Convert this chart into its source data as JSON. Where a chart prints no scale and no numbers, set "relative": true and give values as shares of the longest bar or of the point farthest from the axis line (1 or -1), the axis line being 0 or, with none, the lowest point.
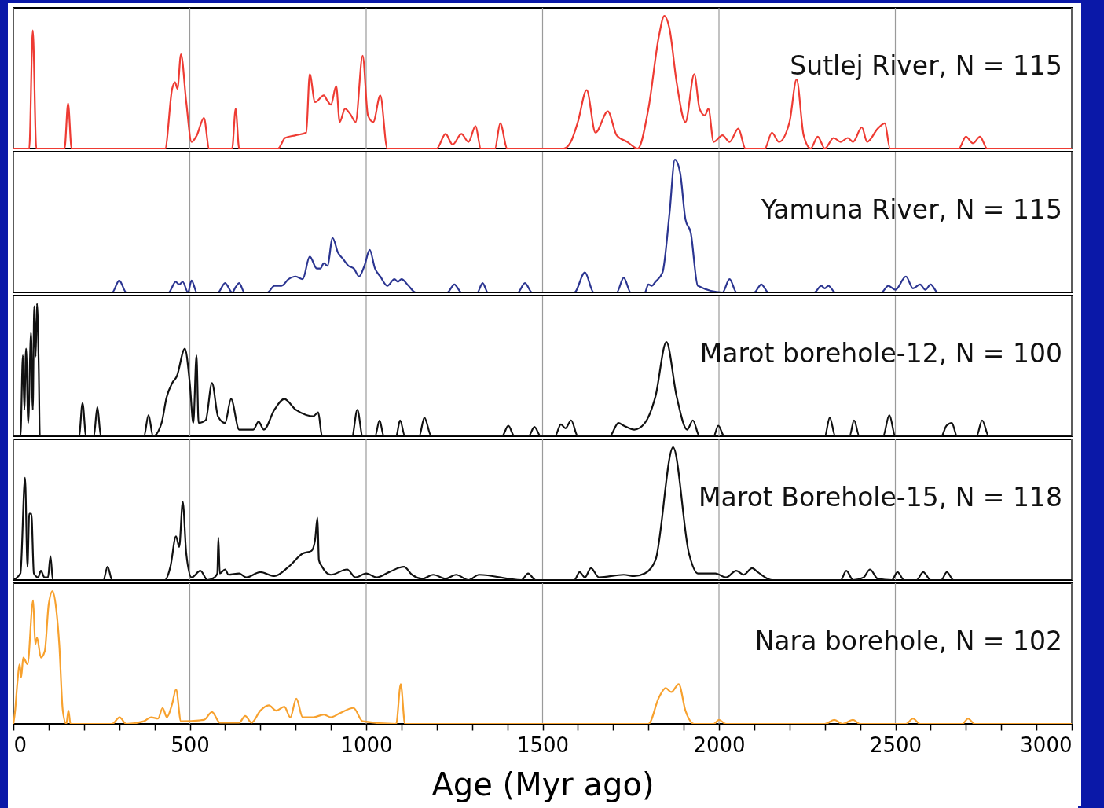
{
  "chart_data": [
    {
      "type": "line",
      "relative": true,
      "xlim": [
        0,
        3000
      ],
      "xticks": [
        0,
        500,
        1000,
        1500,
        2000,
        2500,
        3000
      ],
      "tick_labels": false,
      "grid": "x",
      "x": [
        0,
        45,
        55,
        65,
        145,
        155,
        165,
        430,
        450,
        458,
        465,
        475,
        490,
        505,
        520,
        540,
        555,
        620,
        630,
        640,
        750,
        770,
        800,
        830,
        840,
        855,
        880,
        890,
        900,
        915,
        925,
        940,
        955,
        970,
        990,
        1005,
        1020,
        1040,
        1060,
        1200,
        1225,
        1245,
        1270,
        1290,
        1310,
        1325,
        1365,
        1380,
        1400,
        1560,
        1580,
        1600,
        1625,
        1650,
        1685,
        1710,
        1740,
        1770,
        1800,
        1830,
        1845,
        1860,
        1880,
        1905,
        1930,
        1945,
        1960,
        1970,
        1985,
        2010,
        2030,
        2055,
        2075,
        2130,
        2150,
        2170,
        2200,
        2220,
        2240,
        2260,
        2280,
        2300,
        2325,
        2345,
        2365,
        2380,
        2405,
        2420,
        2450,
        2470,
        2485,
        2680,
        2700,
        2720,
        2740,
        2760,
        3000
      ],
      "series": [
        {
          "name": "Sutlej River, N = 115",
          "color": "#ee3b33",
          "values": [
            0,
            0,
            0.89,
            0,
            0,
            0.34,
            0,
            0,
            0.45,
            0.5,
            0.45,
            0.71,
            0.35,
            0.05,
            0.1,
            0.23,
            0,
            0,
            0.3,
            0,
            0,
            0.08,
            0.1,
            0.12,
            0.56,
            0.35,
            0.4,
            0.36,
            0.33,
            0.47,
            0.2,
            0.3,
            0.26,
            0.2,
            0.7,
            0.25,
            0.2,
            0.4,
            0,
            0,
            0.11,
            0.03,
            0.11,
            0.05,
            0.17,
            0,
            0,
            0.19,
            0,
            0,
            0.05,
            0.2,
            0.44,
            0.12,
            0.28,
            0.1,
            0.05,
            0,
            0.3,
            0.85,
            1,
            0.9,
            0.5,
            0.2,
            0.56,
            0.3,
            0.25,
            0.3,
            0.05,
            0.1,
            0.05,
            0.15,
            0,
            0,
            0.12,
            0.05,
            0.2,
            0.52,
            0.1,
            0,
            0.09,
            0,
            0.08,
            0.05,
            0.08,
            0.05,
            0.16,
            0.05,
            0.15,
            0.19,
            0,
            0,
            0.09,
            0.04,
            0.09,
            0,
            0
          ]
        }
      ]
    },
    {
      "type": "line",
      "relative": true,
      "xlim": [
        0,
        3000
      ],
      "xticks": [
        0,
        500,
        1000,
        1500,
        2000,
        2500,
        3000
      ],
      "tick_labels": false,
      "grid": "x",
      "x": [
        0,
        280,
        300,
        320,
        440,
        460,
        470,
        480,
        495,
        505,
        520,
        535,
        580,
        600,
        620,
        630,
        640,
        655,
        720,
        740,
        760,
        780,
        800,
        820,
        840,
        860,
        870,
        880,
        890,
        905,
        920,
        935,
        950,
        965,
        980,
        995,
        1010,
        1025,
        1040,
        1060,
        1080,
        1090,
        1100,
        1120,
        1140,
        1230,
        1250,
        1270,
        1315,
        1330,
        1345,
        1430,
        1450,
        1470,
        1590,
        1620,
        1645,
        1710,
        1730,
        1750,
        1790,
        1800,
        1810,
        1820,
        1840,
        1860,
        1875,
        1890,
        1905,
        1920,
        1940,
        2010,
        2030,
        2050,
        2100,
        2120,
        2140,
        2270,
        2290,
        2300,
        2310,
        2330,
        2460,
        2480,
        2500,
        2530,
        2550,
        2570,
        2585,
        2600,
        2620,
        3000
      ],
      "series": [
        {
          "name": "Yamuna River, N = 115",
          "color": "#2b3591",
          "values": [
            0,
            0,
            0.09,
            0,
            0,
            0.08,
            0.06,
            0.08,
            0,
            0.09,
            0,
            0,
            0,
            0.07,
            0,
            0.04,
            0.07,
            0,
            0,
            0.05,
            0.05,
            0.1,
            0.12,
            0.1,
            0.27,
            0.18,
            0.18,
            0.22,
            0.2,
            0.41,
            0.3,
            0.25,
            0.2,
            0.18,
            0.12,
            0.2,
            0.32,
            0.18,
            0.12,
            0.05,
            0.1,
            0.08,
            0.1,
            0.05,
            0,
            0,
            0.06,
            0,
            0,
            0.07,
            0,
            0,
            0.07,
            0,
            0,
            0.15,
            0,
            0,
            0.11,
            0,
            0,
            0.06,
            0.05,
            0.08,
            0.15,
            0.6,
            1,
            0.9,
            0.55,
            0.45,
            0.05,
            0,
            0.1,
            0,
            0,
            0.06,
            0,
            0,
            0.05,
            0.03,
            0.05,
            0,
            0,
            0.05,
            0.02,
            0.12,
            0.03,
            0.06,
            0.02,
            0.06,
            0,
            0
          ]
        }
      ]
    },
    {
      "type": "line",
      "relative": true,
      "xlim": [
        0,
        3000
      ],
      "xticks": [
        0,
        500,
        1000,
        1500,
        2000,
        2500,
        3000
      ],
      "tick_labels": false,
      "grid": "x",
      "x": [
        0,
        20,
        27,
        31,
        36,
        42,
        50,
        55,
        59,
        63,
        67,
        72,
        75,
        134,
        186,
        196,
        206,
        228,
        238,
        248,
        370,
        383,
        396,
        420,
        434,
        450,
        463,
        486,
        500,
        510,
        519,
        525,
        545,
        563,
        580,
        600,
        617,
        640,
        680,
        695,
        710,
        740,
        768,
        800,
        830,
        850,
        864,
        875,
        960,
        975,
        990,
        1025,
        1038,
        1050,
        1085,
        1096,
        1110,
        1150,
        1165,
        1185,
        1385,
        1403,
        1420,
        1460,
        1477,
        1495,
        1535,
        1552,
        1565,
        1581,
        1600,
        1690,
        1715,
        1730,
        1760,
        1790,
        1820,
        1851,
        1880,
        1910,
        1926,
        1945,
        1985,
        1998,
        2015,
        2300,
        2314,
        2330,
        2370,
        2383,
        2398,
        2465,
        2483,
        2500,
        2630,
        2645,
        2660,
        2675,
        2730,
        2746,
        2765,
        3000
      ],
      "series": [
        {
          "name": "Marot borehole-12, N = 100",
          "color": "#111111",
          "values": [
            0,
            0,
            0.61,
            0.2,
            0.66,
            0.1,
            0.78,
            0.2,
            0.98,
            0.6,
            1,
            0.5,
            0,
            0,
            0,
            0.25,
            0,
            0,
            0.22,
            0,
            0,
            0.16,
            0,
            0.1,
            0.29,
            0.4,
            0.45,
            0.66,
            0.4,
            0.1,
            0.61,
            0.1,
            0.12,
            0.4,
            0.15,
            0.1,
            0.28,
            0.05,
            0.05,
            0.11,
            0.05,
            0.2,
            0.28,
            0.2,
            0.16,
            0.15,
            0.18,
            0,
            0,
            0.2,
            0,
            0,
            0.12,
            0,
            0,
            0.12,
            0,
            0,
            0.14,
            0,
            0,
            0.08,
            0,
            0,
            0.07,
            0,
            0,
            0.09,
            0.06,
            0.12,
            0,
            0,
            0.1,
            0.08,
            0.05,
            0.1,
            0.3,
            0.71,
            0.3,
            0.05,
            0.12,
            0,
            0,
            0.08,
            0,
            0,
            0.14,
            0,
            0,
            0.12,
            0,
            0,
            0.16,
            0,
            0,
            0.08,
            0.1,
            0,
            0,
            0.12,
            0,
            0
          ]
        }
      ]
    },
    {
      "type": "line",
      "relative": true,
      "xlim": [
        0,
        3000
      ],
      "xticks": [
        0,
        500,
        1000,
        1500,
        2000,
        2500,
        3000
      ],
      "tick_labels": false,
      "grid": "x",
      "x": [
        0,
        20,
        33,
        40,
        45,
        51,
        58,
        70,
        78,
        88,
        98,
        105,
        112,
        255,
        267,
        280,
        430,
        445,
        461,
        470,
        480,
        490,
        505,
        530,
        550,
        570,
        578,
        581,
        585,
        600,
        610,
        640,
        660,
        700,
        740,
        780,
        820,
        845,
        855,
        862,
        866,
        875,
        900,
        946,
        970,
        1000,
        1030,
        1065,
        1107,
        1130,
        1160,
        1190,
        1225,
        1255,
        1290,
        1320,
        1440,
        1459,
        1480,
        1590,
        1605,
        1620,
        1637,
        1660,
        1730,
        1760,
        1790,
        1820,
        1870,
        1915,
        1940,
        1990,
        2020,
        2049,
        2070,
        2094,
        2110,
        2150,
        2345,
        2361,
        2380,
        2410,
        2428,
        2450,
        2490,
        2506,
        2525,
        2560,
        2579,
        2600,
        2630,
        2646,
        2665,
        3000
      ],
      "series": [
        {
          "name": "Marot Borehole-15, N = 118",
          "color": "#111111",
          "values": [
            0,
            0.05,
            0.77,
            0.1,
            0.5,
            0.5,
            0.05,
            0.02,
            0.07,
            0.02,
            0.02,
            0.18,
            0,
            0,
            0.1,
            0,
            0,
            0.1,
            0.33,
            0.25,
            0.59,
            0.2,
            0.02,
            0.07,
            0,
            0.02,
            0.05,
            0.32,
            0.05,
            0.08,
            0.04,
            0.05,
            0.02,
            0.06,
            0.03,
            0.1,
            0.2,
            0.22,
            0.3,
            0.47,
            0.15,
            0.1,
            0.04,
            0.08,
            0.02,
            0.05,
            0.02,
            0.06,
            0.1,
            0.04,
            0.01,
            0.04,
            0.01,
            0.04,
            0,
            0.04,
            0,
            0.05,
            0,
            0,
            0.06,
            0.02,
            0.09,
            0.02,
            0.04,
            0.03,
            0.05,
            0.15,
            1,
            0.2,
            0.05,
            0.05,
            0.02,
            0.07,
            0.04,
            0.09,
            0.06,
            0,
            0,
            0.07,
            0,
            0.02,
            0.08,
            0.01,
            0,
            0.06,
            0,
            0,
            0.06,
            0,
            0,
            0.06,
            0,
            0
          ]
        }
      ]
    },
    {
      "type": "line",
      "relative": true,
      "xlim": [
        0,
        3000
      ],
      "xticks": [
        0,
        {
          "value": 100,
          "label": null
        },
        {
          "value": 200,
          "label": null
        },
        {
          "value": 300,
          "label": null
        },
        {
          "value": 400,
          "label": null
        },
        500,
        {
          "value": 600,
          "label": null
        },
        {
          "value": 700,
          "label": null
        },
        {
          "value": 800,
          "label": null
        },
        {
          "value": 900,
          "label": null
        },
        1000,
        {
          "value": 1100,
          "label": null
        },
        {
          "value": 1200,
          "label": null
        },
        {
          "value": 1300,
          "label": null
        },
        {
          "value": 1400,
          "label": null
        },
        1500,
        {
          "value": 1600,
          "label": null
        },
        {
          "value": 1700,
          "label": null
        },
        {
          "value": 1800,
          "label": null
        },
        {
          "value": 1900,
          "label": null
        },
        2000,
        {
          "value": 2100,
          "label": null
        },
        {
          "value": 2200,
          "label": null
        },
        {
          "value": 2300,
          "label": null
        },
        {
          "value": 2400,
          "label": null
        },
        2500,
        {
          "value": 2600,
          "label": null
        },
        {
          "value": 2700,
          "label": null
        },
        {
          "value": 2800,
          "label": null
        },
        {
          "value": 2900,
          "label": null
        },
        3000
      ],
      "grid": "x",
      "xlabel": "Age (Myr ago)",
      "x": [
        0,
        5,
        11,
        18,
        22,
        28,
        40,
        56,
        62,
        67,
        78,
        89,
        100,
        111,
        122,
        130,
        140,
        150,
        156,
        162,
        280,
        301,
        320,
        370,
        390,
        410,
        423,
        435,
        450,
        461,
        475,
        540,
        563,
        585,
        640,
        657,
        675,
        700,
        724,
        745,
        768,
        785,
        802,
        820,
        850,
        880,
        900,
        925,
        964,
        990,
        1085,
        1098,
        1110,
        1800,
        1830,
        1849,
        1865,
        1886,
        1905,
        1930,
        1985,
        2000,
        2020,
        2300,
        2327,
        2350,
        2380,
        2400,
        2530,
        2550,
        2570,
        2690,
        2706,
        2725,
        3000
      ],
      "series": [
        {
          "name": "Nara borehole, N =  102",
          "color": "#f7a12e",
          "values": [
            0,
            0.1,
            0.3,
            0.45,
            0.35,
            0.5,
            0.45,
            0.93,
            0.6,
            0.65,
            0.5,
            0.55,
            0.9,
            1,
            0.85,
            0.6,
            0.1,
            0,
            0.1,
            0,
            0,
            0.05,
            0,
            0.02,
            0.05,
            0.04,
            0.12,
            0.05,
            0.15,
            0.26,
            0.02,
            0.03,
            0.09,
            0.01,
            0.01,
            0.06,
            0.01,
            0.1,
            0.14,
            0.1,
            0.13,
            0.05,
            0.19,
            0.05,
            0.05,
            0.07,
            0.05,
            0.08,
            0.12,
            0.02,
            0,
            0.3,
            0,
            0,
            0.2,
            0.27,
            0.24,
            0.3,
            0.1,
            0,
            0,
            0.03,
            0,
            0,
            0.03,
            0,
            0.03,
            0,
            0,
            0.04,
            0,
            0,
            0.04,
            0,
            0
          ]
        }
      ]
    }
  ]
}
